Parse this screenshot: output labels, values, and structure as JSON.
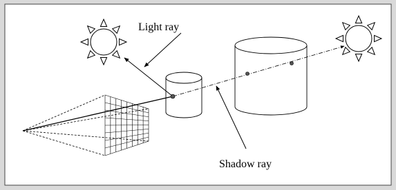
{
  "labels": {
    "light_ray": "Light ray",
    "shadow_ray": "Shadow ray"
  }
}
